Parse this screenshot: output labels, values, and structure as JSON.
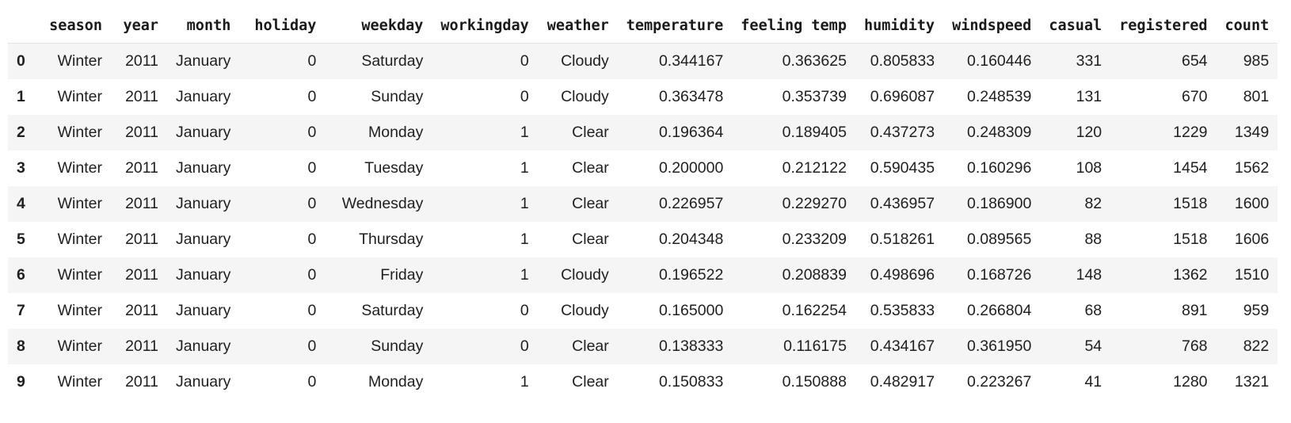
{
  "dataframe": {
    "columns": [
      "season",
      "year",
      "month",
      "holiday",
      "weekday",
      "workingday",
      "weather",
      "temperature",
      "feeling temp",
      "humidity",
      "windspeed",
      "casual",
      "registered",
      "count"
    ],
    "index": [
      "0",
      "1",
      "2",
      "3",
      "4",
      "5",
      "6",
      "7",
      "8",
      "9"
    ],
    "rows": [
      [
        "Winter",
        "2011",
        "January",
        "0",
        "Saturday",
        "0",
        "Cloudy",
        "0.344167",
        "0.363625",
        "0.805833",
        "0.160446",
        "331",
        "654",
        "985"
      ],
      [
        "Winter",
        "2011",
        "January",
        "0",
        "Sunday",
        "0",
        "Cloudy",
        "0.363478",
        "0.353739",
        "0.696087",
        "0.248539",
        "131",
        "670",
        "801"
      ],
      [
        "Winter",
        "2011",
        "January",
        "0",
        "Monday",
        "1",
        "Clear",
        "0.196364",
        "0.189405",
        "0.437273",
        "0.248309",
        "120",
        "1229",
        "1349"
      ],
      [
        "Winter",
        "2011",
        "January",
        "0",
        "Tuesday",
        "1",
        "Clear",
        "0.200000",
        "0.212122",
        "0.590435",
        "0.160296",
        "108",
        "1454",
        "1562"
      ],
      [
        "Winter",
        "2011",
        "January",
        "0",
        "Wednesday",
        "1",
        "Clear",
        "0.226957",
        "0.229270",
        "0.436957",
        "0.186900",
        "82",
        "1518",
        "1600"
      ],
      [
        "Winter",
        "2011",
        "January",
        "0",
        "Thursday",
        "1",
        "Clear",
        "0.204348",
        "0.233209",
        "0.518261",
        "0.089565",
        "88",
        "1518",
        "1606"
      ],
      [
        "Winter",
        "2011",
        "January",
        "0",
        "Friday",
        "1",
        "Cloudy",
        "0.196522",
        "0.208839",
        "0.498696",
        "0.168726",
        "148",
        "1362",
        "1510"
      ],
      [
        "Winter",
        "2011",
        "January",
        "0",
        "Saturday",
        "0",
        "Cloudy",
        "0.165000",
        "0.162254",
        "0.535833",
        "0.266804",
        "68",
        "891",
        "959"
      ],
      [
        "Winter",
        "2011",
        "January",
        "0",
        "Sunday",
        "0",
        "Clear",
        "0.138333",
        "0.116175",
        "0.434167",
        "0.361950",
        "54",
        "768",
        "822"
      ],
      [
        "Winter",
        "2011",
        "January",
        "0",
        "Monday",
        "1",
        "Clear",
        "0.150833",
        "0.150888",
        "0.482917",
        "0.223267",
        "41",
        "1280",
        "1321"
      ]
    ]
  },
  "colors": {
    "stripe": "#f5f5f5",
    "background": "#ffffff",
    "text": "#202020"
  }
}
